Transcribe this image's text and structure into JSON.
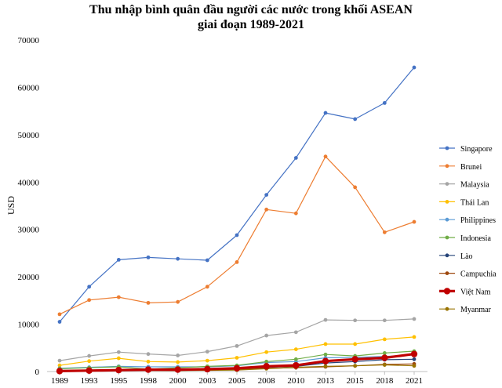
{
  "chart_data": {
    "type": "line",
    "title_line1": "Thu nhập bình quân đầu người các nước trong khối ASEAN",
    "title_line2": "giai đoạn 1989-2021",
    "xlabel": "",
    "ylabel": "USD",
    "ylim": [
      0,
      70000
    ],
    "yticks": [
      "0",
      "10000",
      "20000",
      "30000",
      "40000",
      "50000",
      "60000",
      "70000"
    ],
    "ytick_values": [
      0,
      10000,
      20000,
      30000,
      40000,
      50000,
      60000,
      70000
    ],
    "categories": [
      "1989",
      "1993",
      "1995",
      "1998",
      "2000",
      "2003",
      "2005",
      "2008",
      "2010",
      "2013",
      "2015",
      "2018",
      "2021"
    ],
    "grid": false,
    "legend_position": "right",
    "series": [
      {
        "name": "Singapore",
        "color": "#4472C4",
        "highlight": false,
        "values": [
          10500,
          17900,
          23600,
          24100,
          23800,
          23500,
          28800,
          37300,
          45100,
          54600,
          53300,
          56700,
          64200
        ]
      },
      {
        "name": "Brunei",
        "color": "#ED7D31",
        "highlight": false,
        "values": [
          12100,
          15100,
          15700,
          14500,
          14700,
          17900,
          23100,
          34200,
          33400,
          45400,
          38900,
          29400,
          31600
        ]
      },
      {
        "name": "Malaysia",
        "color": "#A5A5A5",
        "highlight": false,
        "values": [
          2300,
          3300,
          4100,
          3700,
          3400,
          4200,
          5400,
          7600,
          8300,
          10900,
          10800,
          10800,
          11100
        ]
      },
      {
        "name": "Thái Lan",
        "color": "#FFC000",
        "highlight": false,
        "values": [
          1300,
          2200,
          2800,
          2100,
          2000,
          2300,
          2900,
          4100,
          4700,
          5800,
          5800,
          6800,
          7300
        ]
      },
      {
        "name": "Philippines",
        "color": "#5B9BD5",
        "highlight": false,
        "values": [
          700,
          900,
          1100,
          1000,
          1000,
          1000,
          1200,
          1900,
          2100,
          2900,
          3000,
          3200,
          3500
        ]
      },
      {
        "name": "Indonesia",
        "color": "#70AD47",
        "highlight": false,
        "values": [
          600,
          800,
          1000,
          500,
          800,
          1100,
          1300,
          2100,
          2600,
          3600,
          3300,
          3900,
          4300
        ]
      },
      {
        "name": "Lào",
        "color": "#264478",
        "highlight": false,
        "values": [
          200,
          300,
          400,
          300,
          300,
          400,
          500,
          900,
          1100,
          1800,
          2100,
          2500,
          2600
        ]
      },
      {
        "name": "Campuchia",
        "color": "#9E480E",
        "highlight": false,
        "values": [
          150,
          250,
          300,
          300,
          300,
          350,
          450,
          700,
          800,
          1000,
          1200,
          1500,
          1600
        ]
      },
      {
        "name": "Việt Nam",
        "color": "#C00000",
        "highlight": true,
        "values": [
          100,
          200,
          300,
          400,
          400,
          500,
          700,
          1100,
          1300,
          2200,
          2600,
          2900,
          3700
        ]
      },
      {
        "name": "Myanmar",
        "color": "#997300",
        "highlight": false,
        "values": [
          150,
          200,
          250,
          250,
          200,
          250,
          300,
          600,
          900,
          1100,
          1200,
          1400,
          1200
        ]
      }
    ]
  }
}
